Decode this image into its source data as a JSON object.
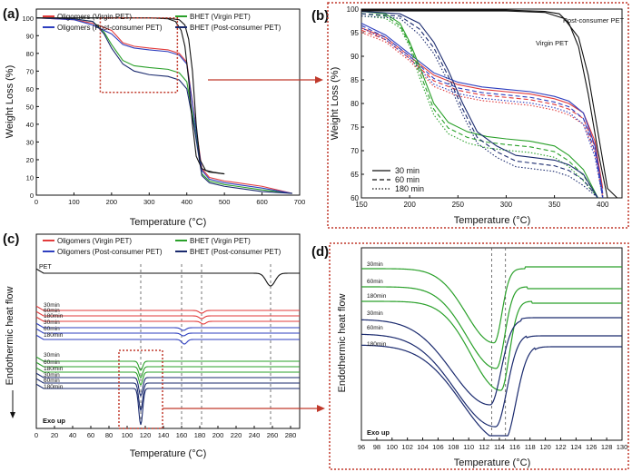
{
  "panels": {
    "a": "(a)",
    "b": "(b)",
    "c": "(c)",
    "d": "(d)"
  },
  "colors": {
    "red": "#e23b3b",
    "green": "#2aa02a",
    "blue": "#2e3fbf",
    "black": "#111111",
    "darkblue": "#1a2a6e",
    "dotted_red": "#c0392b"
  },
  "chart_data": [
    {
      "id": "a",
      "type": "line",
      "title": "",
      "xlabel": "Temperature (°C)",
      "ylabel": "Weight Loss (%)",
      "xlim": [
        0,
        700
      ],
      "ylim": [
        0,
        105
      ],
      "xticks": [
        0,
        100,
        200,
        300,
        400,
        500,
        600,
        700
      ],
      "yticks": [
        0,
        10,
        20,
        30,
        40,
        50,
        60,
        70,
        80,
        90,
        100
      ],
      "legend": [
        "Oligomers (Virgin PET)",
        "BHET (Virgin PET)",
        "Oligomers (Post-consumer PET)",
        "BHET (Post-consumer PET)"
      ],
      "series": [
        {
          "name": "Oligomers (Virgin PET)",
          "color": "red",
          "x": [
            0,
            100,
            150,
            200,
            230,
            260,
            300,
            350,
            380,
            400,
            420,
            440,
            460,
            500,
            600,
            680
          ],
          "y": [
            100,
            99,
            97,
            93,
            86,
            84,
            83,
            82,
            80,
            75,
            45,
            15,
            10,
            8,
            5,
            1
          ]
        },
        {
          "name": "BHET (Virgin PET)",
          "color": "green",
          "x": [
            0,
            100,
            150,
            180,
            200,
            230,
            260,
            300,
            350,
            380,
            400,
            420,
            440,
            460,
            500,
            600,
            680
          ],
          "y": [
            100,
            99.5,
            98,
            92,
            85,
            76,
            73,
            72,
            71,
            69,
            64,
            40,
            12,
            8,
            6,
            3,
            1
          ]
        },
        {
          "name": "Oligomers (Post-consumer PET)",
          "color": "blue",
          "x": [
            0,
            100,
            150,
            200,
            230,
            260,
            300,
            350,
            380,
            400,
            420,
            440,
            460,
            500,
            600,
            680
          ],
          "y": [
            100,
            99,
            96,
            91,
            85,
            83,
            82,
            81,
            79,
            74,
            44,
            14,
            9,
            7,
            4,
            1
          ]
        },
        {
          "name": "BHET (Post-consumer PET)",
          "color": "darkblue",
          "x": [
            0,
            100,
            150,
            180,
            200,
            230,
            260,
            300,
            350,
            380,
            400,
            420,
            440,
            460,
            500,
            600,
            680
          ],
          "y": [
            100,
            99.5,
            98,
            91,
            83,
            74,
            70,
            68,
            67,
            65,
            60,
            38,
            11,
            7,
            5,
            2,
            1
          ]
        },
        {
          "name": "Virgin PET",
          "color": "black",
          "x": [
            0,
            100,
            200,
            300,
            350,
            380,
            395,
            405,
            415,
            425,
            435,
            450,
            470,
            500
          ],
          "y": [
            100,
            100,
            100,
            100,
            99.8,
            99,
            96,
            88,
            70,
            40,
            20,
            14,
            13,
            12
          ]
        },
        {
          "name": "Post-consumer PET",
          "color": "black",
          "x": [
            0,
            100,
            200,
            300,
            350,
            370,
            385,
            395,
            405,
            415,
            425,
            440,
            460,
            500
          ],
          "y": [
            100,
            100,
            100,
            100,
            99.5,
            98,
            93,
            84,
            65,
            40,
            22,
            15,
            13,
            12
          ]
        }
      ],
      "box": {
        "x": [
          170,
          375
        ],
        "y": [
          58,
          100
        ]
      }
    },
    {
      "id": "b",
      "type": "line",
      "title": "",
      "xlabel": "Temperature (°C)",
      "ylabel": "Weight Loss (%)",
      "xlim": [
        150,
        420
      ],
      "ylim": [
        60,
        100
      ],
      "xticks": [
        150,
        200,
        250,
        300,
        350,
        400
      ],
      "yticks": [
        60,
        65,
        70,
        75,
        80,
        85,
        90,
        95,
        100
      ],
      "annotations": [
        "Post-consumer PET",
        "Virgin PET"
      ],
      "legend": [
        "30 min",
        "60 min",
        "180 min"
      ],
      "series": [
        {
          "name": "Oligomers (Virgin PET)",
          "color": "red",
          "x": [
            150,
            175,
            200,
            225,
            250,
            275,
            300,
            325,
            350,
            365,
            380,
            392,
            400
          ],
          "y": [
            96,
            94,
            90,
            86,
            84,
            83,
            82.5,
            82,
            81,
            80,
            78,
            72,
            62
          ]
        },
        {
          "name": "Oligomers (Post-consumer PET)",
          "color": "blue",
          "x": [
            150,
            175,
            200,
            225,
            250,
            275,
            300,
            325,
            350,
            365,
            380,
            392,
            400
          ],
          "y": [
            97,
            94.5,
            90.5,
            86.5,
            84.5,
            83.5,
            83,
            82.5,
            81.5,
            80.5,
            78,
            71,
            61
          ]
        },
        {
          "name": "BHET (Virgin PET)",
          "color": "green",
          "x": [
            150,
            175,
            190,
            200,
            210,
            225,
            240,
            260,
            280,
            300,
            325,
            350,
            365,
            380,
            395
          ],
          "y": [
            99.5,
            99,
            97,
            93,
            88,
            80,
            76,
            74,
            73,
            72.5,
            72,
            71,
            69,
            66,
            60
          ]
        },
        {
          "name": "BHET (Post-consumer PET)",
          "color": "darkblue",
          "x": [
            150,
            190,
            210,
            225,
            240,
            255,
            270,
            290,
            310,
            330,
            350,
            365,
            380,
            395
          ],
          "y": [
            99.5,
            99,
            97,
            93,
            87,
            80,
            74,
            71,
            69,
            68.5,
            68,
            67,
            65,
            60
          ]
        },
        {
          "name": "Post-consumer PET",
          "color": "black",
          "x": [
            150,
            200,
            250,
            300,
            340,
            355,
            365,
            375,
            385,
            395,
            405,
            412
          ],
          "y": [
            99.8,
            99.8,
            99.8,
            99.8,
            99.5,
            99,
            97,
            92,
            82,
            70,
            60,
            60
          ]
        },
        {
          "name": "Virgin PET",
          "color": "black",
          "x": [
            150,
            200,
            250,
            300,
            340,
            360,
            375,
            385,
            395,
            405,
            415
          ],
          "y": [
            99.6,
            99.6,
            99.6,
            99.6,
            99.3,
            98,
            94,
            86,
            74,
            62,
            60
          ]
        }
      ]
    },
    {
      "id": "c",
      "type": "line",
      "title": "",
      "xlabel": "Temperature (°C)",
      "ylabel": "Endothermic heat flow",
      "xlim": [
        0,
        290
      ],
      "xticks": [
        0,
        20,
        40,
        60,
        80,
        100,
        120,
        140,
        160,
        180,
        200,
        220,
        240,
        260,
        280
      ],
      "legend": [
        "Oligomers (Virgin PET)",
        "BHET (Virgin PET)",
        "Oligomers (Post-consumer PET)",
        "BHET (Post-consumer PET)"
      ],
      "trace_labels": [
        "PET",
        "30min",
        "60min",
        "180min",
        "30min",
        "60min",
        "180min",
        "30min",
        "60min",
        "180min",
        "30min",
        "60min",
        "180min"
      ],
      "corner_label": "Exo up",
      "vlines": [
        115,
        160,
        182,
        258
      ]
    },
    {
      "id": "d",
      "type": "line",
      "title": "",
      "xlabel": "Temperature (°C)",
      "ylabel": "Endothermic heat flow",
      "xlim": [
        96,
        130
      ],
      "xticks": [
        96,
        98,
        100,
        102,
        104,
        106,
        108,
        110,
        112,
        114,
        116,
        118,
        120,
        122,
        124,
        126,
        128,
        130
      ],
      "trace_labels": [
        "30min",
        "60min",
        "180min",
        "30min",
        "60min",
        "180min"
      ],
      "corner_label": "Exo up",
      "vlines": [
        113,
        114.8
      ]
    }
  ]
}
